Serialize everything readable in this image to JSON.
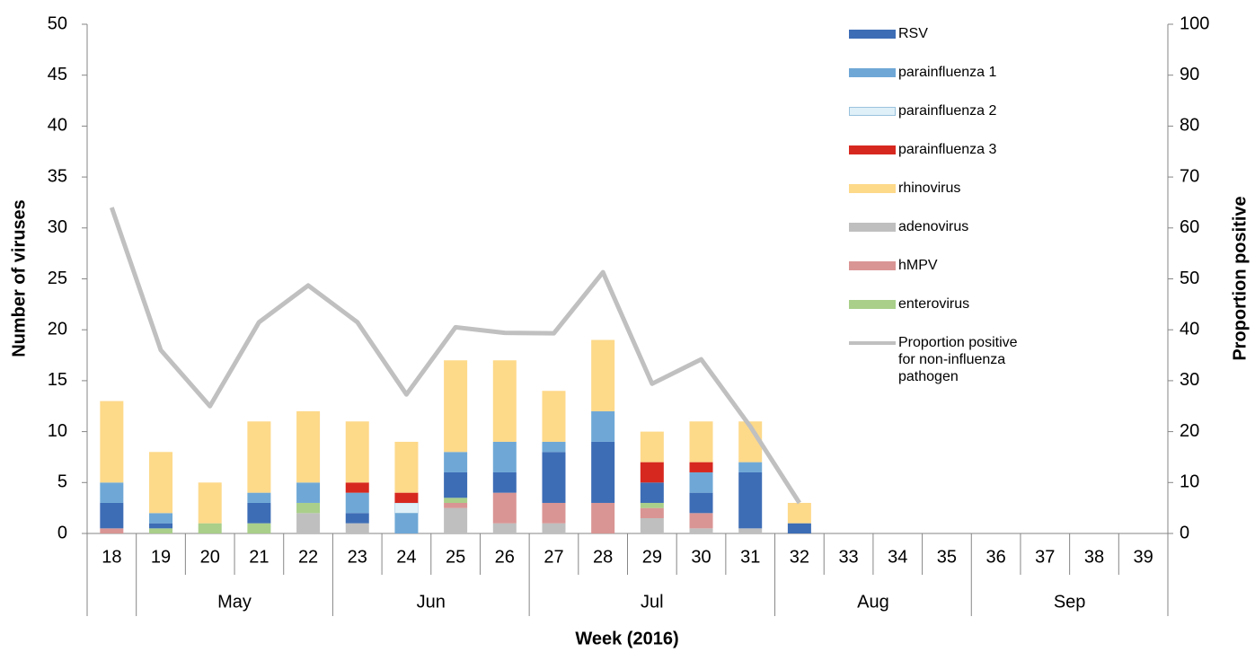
{
  "chart_data": {
    "type": "bar",
    "stacked": true,
    "y_label": "Number of viruses",
    "y2_label": "Proportion positive",
    "x_label": "Week (2016)",
    "categories": [
      "18",
      "19",
      "20",
      "21",
      "22",
      "23",
      "24",
      "25",
      "26",
      "27",
      "28",
      "29",
      "30",
      "31",
      "32",
      "33",
      "34",
      "35",
      "36",
      "37",
      "38",
      "39"
    ],
    "x_groups": [
      {
        "label": null,
        "span": 1
      },
      {
        "label": "May",
        "span": 4
      },
      {
        "label": "Jun",
        "span": 4
      },
      {
        "label": "Jul",
        "span": 5
      },
      {
        "label": "Aug",
        "span": 4
      },
      {
        "label": "Sep",
        "span": 4
      }
    ],
    "ylim": [
      0,
      50
    ],
    "yticks": [
      0,
      5,
      10,
      15,
      20,
      25,
      30,
      35,
      40,
      45,
      50
    ],
    "y2lim": [
      0,
      100
    ],
    "y2ticks": [
      0,
      10,
      20,
      30,
      40,
      50,
      60,
      70,
      80,
      90,
      100
    ],
    "legend": "upper right",
    "series": [
      {
        "name": "adenovirus",
        "color": "#bfbfbf",
        "values": [
          0,
          0,
          0,
          0,
          2,
          1,
          0,
          2.5,
          1,
          1,
          0,
          1.5,
          0.5,
          0.5,
          0,
          0,
          0,
          0,
          0,
          0,
          0,
          0
        ]
      },
      {
        "name": "hMPV",
        "color": "#d99594",
        "values": [
          0.5,
          0,
          0,
          0,
          0,
          0,
          0,
          0.5,
          3,
          2,
          3,
          1,
          1.5,
          0,
          0,
          0,
          0,
          0,
          0,
          0,
          0,
          0
        ]
      },
      {
        "name": "enterovirus",
        "color": "#a9cf8a",
        "values": [
          0,
          0.5,
          1,
          1,
          1,
          0,
          0,
          0.5,
          0,
          0,
          0,
          0.5,
          0,
          0,
          0,
          0,
          0,
          0,
          0,
          0,
          0,
          0
        ]
      },
      {
        "name": "RSV",
        "color": "#3d6db5",
        "values": [
          2.5,
          0.5,
          0,
          2,
          0,
          1,
          0,
          2.5,
          2,
          5,
          6,
          2,
          2,
          5.5,
          1,
          0,
          0,
          0,
          0,
          0,
          0,
          0
        ]
      },
      {
        "name": "parainfluenza 1",
        "color": "#6fa8d6",
        "values": [
          2,
          1,
          0,
          1,
          2,
          2,
          2,
          2,
          3,
          1,
          3,
          0,
          2,
          1,
          0,
          0,
          0,
          0,
          0,
          0,
          0,
          0
        ]
      },
      {
        "name": "parainfluenza 2",
        "color": "#dff0f8",
        "values": [
          0,
          0,
          0,
          0,
          0,
          0,
          1,
          0,
          0,
          0,
          0,
          0,
          0,
          0,
          0,
          0,
          0,
          0,
          0,
          0,
          0,
          0
        ]
      },
      {
        "name": "parainfluenza 3",
        "color": "#d7281f",
        "values": [
          0,
          0,
          0,
          0,
          0,
          1,
          1,
          0,
          0,
          0,
          0,
          2,
          1,
          0,
          0,
          0,
          0,
          0,
          0,
          0,
          0,
          0
        ]
      },
      {
        "name": "rhinovirus",
        "color": "#fdd98a",
        "values": [
          8,
          6,
          4,
          7,
          7,
          6,
          5,
          9,
          8,
          5,
          7,
          3,
          4,
          4,
          2,
          0,
          0,
          0,
          0,
          0,
          0,
          0
        ]
      },
      {
        "name": "Proportion positive for non-influenza pathogen",
        "type": "line",
        "axis": "y2",
        "color": "#c0c0c0",
        "values": [
          64,
          36,
          25,
          41.5,
          48.7,
          41.5,
          27.3,
          40.5,
          39.4,
          39.3,
          51.3,
          29.4,
          34.2,
          21,
          6,
          null,
          null,
          null,
          null,
          null,
          null,
          null
        ]
      }
    ]
  }
}
